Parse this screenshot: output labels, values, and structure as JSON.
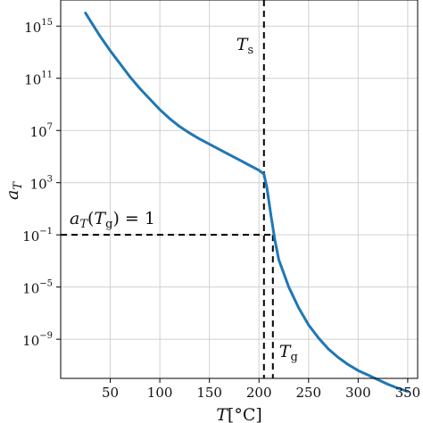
{
  "chart_data": {
    "type": "line",
    "xlabel": {
      "var": "T",
      "unit": "[°C]"
    },
    "ylabel": {
      "var": "a",
      "sub": "T"
    },
    "xlim": [
      0,
      360
    ],
    "ylim_log10": [
      -12,
      17
    ],
    "x_ticks": [
      {
        "value": 50,
        "label": "50"
      },
      {
        "value": 100,
        "label": "100"
      },
      {
        "value": 150,
        "label": "150"
      },
      {
        "value": 200,
        "label": "200"
      },
      {
        "value": 250,
        "label": "250"
      },
      {
        "value": 300,
        "label": "300"
      },
      {
        "value": 350,
        "label": "350"
      }
    ],
    "y_ticks": [
      {
        "exp": 15,
        "base": "10",
        "sup": "15"
      },
      {
        "exp": 11,
        "base": "10",
        "sup": "11"
      },
      {
        "exp": 7,
        "base": "10",
        "sup": "7"
      },
      {
        "exp": 3,
        "base": "10",
        "sup": "3"
      },
      {
        "exp": -1,
        "base": "10",
        "sup": "−1"
      },
      {
        "exp": -5,
        "base": "10",
        "sup": "−5"
      },
      {
        "exp": -9,
        "base": "10",
        "sup": "−9"
      }
    ],
    "grid": true,
    "series": [
      {
        "color": "#1f77b4",
        "x": [
          25,
          30,
          40,
          50,
          60,
          70,
          80,
          90,
          100,
          110,
          120,
          130,
          140,
          150,
          160,
          170,
          180,
          190,
          200,
          205,
          208,
          212,
          216,
          220,
          230,
          240,
          250,
          260,
          270,
          280,
          290,
          300,
          310,
          320,
          330,
          340,
          350
        ],
        "log10_y": [
          16.0,
          15.4,
          14.2,
          13.1,
          12.1,
          11.1,
          10.2,
          9.4,
          8.6,
          7.9,
          7.3,
          6.8,
          6.35,
          5.95,
          5.55,
          5.15,
          4.75,
          4.35,
          3.95,
          3.65,
          2.6,
          0.5,
          -1.4,
          -2.9,
          -5.0,
          -6.6,
          -7.9,
          -8.9,
          -9.75,
          -10.4,
          -10.95,
          -11.4,
          -11.75,
          -12.1,
          -12.45,
          -12.75,
          -13.0
        ]
      }
    ],
    "annotations": {
      "Ts": {
        "x": 205,
        "label_var": "T",
        "label_sub": "s"
      },
      "Tg": {
        "x": 214,
        "y_log10": -1,
        "label_var": "T",
        "label_sub": "g"
      },
      "equation": {
        "main": "a",
        "sub": "T",
        "open": "(",
        "arg": "T",
        "arg_sub": "g",
        "close": ") = 1"
      }
    }
  }
}
